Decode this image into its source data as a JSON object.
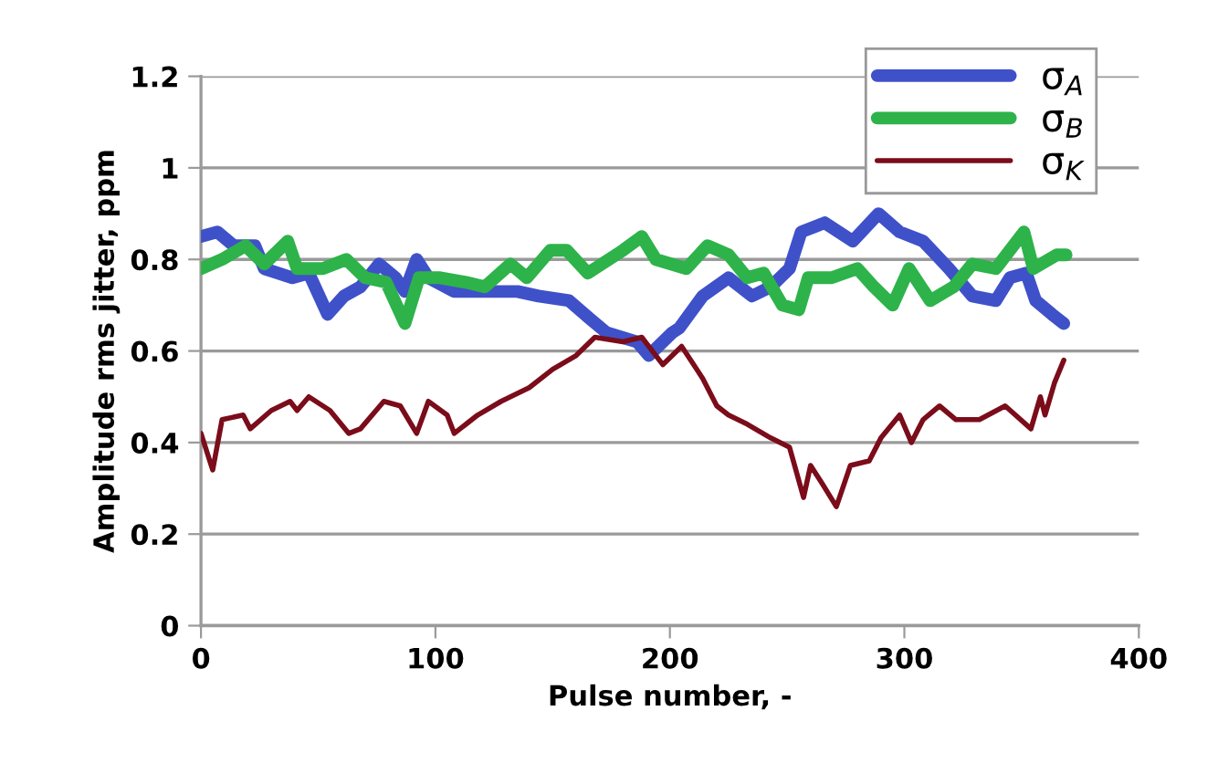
{
  "chart_data": {
    "type": "line",
    "xlabel": "Pulse number, -",
    "ylabel": "Amplitude rms jitter, ppm",
    "xlim": [
      0,
      400
    ],
    "xticks": [
      0,
      100,
      200,
      300,
      400
    ],
    "ylim": [
      0,
      1.2
    ],
    "yticks": [
      0,
      0.2,
      0.4,
      0.6,
      0.8,
      1,
      1.2
    ],
    "grid": "y",
    "legend": "top right",
    "marker": "none",
    "line_style": "solid",
    "series": [
      {
        "name": "σ$_{A}$",
        "color": "#3f51c9",
        "x": [
          0,
          7,
          14,
          23,
          27,
          39,
          46,
          54,
          61,
          68,
          76,
          83,
          87,
          92,
          97,
          108,
          121,
          135,
          144,
          157,
          166,
          173,
          186,
          191,
          201,
          204,
          214,
          225,
          235,
          243,
          251,
          256,
          266,
          278,
          289,
          298,
          308,
          319,
          329,
          339,
          345,
          352,
          356,
          363,
          368
        ],
        "values": [
          0.85,
          0.86,
          0.83,
          0.83,
          0.78,
          0.76,
          0.77,
          0.68,
          0.72,
          0.74,
          0.79,
          0.76,
          0.73,
          0.8,
          0.76,
          0.73,
          0.73,
          0.73,
          0.72,
          0.71,
          0.67,
          0.64,
          0.62,
          0.59,
          0.64,
          0.65,
          0.72,
          0.76,
          0.72,
          0.74,
          0.78,
          0.86,
          0.88,
          0.84,
          0.9,
          0.86,
          0.84,
          0.78,
          0.72,
          0.71,
          0.76,
          0.77,
          0.71,
          0.68,
          0.66
        ]
      },
      {
        "name": "σ$_{B}$",
        "color": "#2db34a",
        "x": [
          0,
          9,
          19,
          27,
          37,
          41,
          52,
          62,
          70,
          79,
          87,
          93,
          102,
          113,
          121,
          132,
          139,
          149,
          156,
          165,
          180,
          188,
          194,
          207,
          216,
          225,
          233,
          240,
          248,
          255,
          259,
          269,
          280,
          287,
          295,
          302,
          311,
          321,
          329,
          339,
          351,
          355,
          365,
          369
        ],
        "values": [
          0.78,
          0.8,
          0.83,
          0.79,
          0.84,
          0.78,
          0.78,
          0.8,
          0.76,
          0.75,
          0.66,
          0.76,
          0.76,
          0.75,
          0.74,
          0.79,
          0.76,
          0.82,
          0.82,
          0.77,
          0.82,
          0.85,
          0.8,
          0.78,
          0.83,
          0.81,
          0.76,
          0.77,
          0.7,
          0.69,
          0.76,
          0.76,
          0.78,
          0.74,
          0.7,
          0.78,
          0.71,
          0.74,
          0.79,
          0.78,
          0.86,
          0.78,
          0.81,
          0.81
        ]
      },
      {
        "name": "σ$_{K}$",
        "color": "#7b0c1a",
        "x": [
          0,
          5,
          9,
          18,
          21,
          30,
          38,
          41,
          46,
          55,
          63,
          68,
          78,
          85,
          92,
          97,
          105,
          108,
          118,
          128,
          140,
          150,
          160,
          168,
          180,
          188,
          197,
          205,
          214,
          220,
          225,
          233,
          243,
          251,
          257,
          260,
          265,
          271,
          277,
          285,
          290,
          298,
          303,
          308,
          315,
          322,
          332,
          343,
          354,
          358,
          360,
          364,
          368
        ],
        "values": [
          0.42,
          0.34,
          0.45,
          0.46,
          0.43,
          0.47,
          0.49,
          0.47,
          0.5,
          0.47,
          0.42,
          0.43,
          0.49,
          0.48,
          0.42,
          0.49,
          0.46,
          0.42,
          0.46,
          0.49,
          0.52,
          0.56,
          0.59,
          0.63,
          0.62,
          0.63,
          0.57,
          0.61,
          0.54,
          0.48,
          0.46,
          0.44,
          0.41,
          0.39,
          0.28,
          0.35,
          0.31,
          0.26,
          0.35,
          0.36,
          0.41,
          0.46,
          0.4,
          0.45,
          0.48,
          0.45,
          0.45,
          0.48,
          0.43,
          0.5,
          0.46,
          0.53,
          0.58
        ]
      }
    ]
  }
}
